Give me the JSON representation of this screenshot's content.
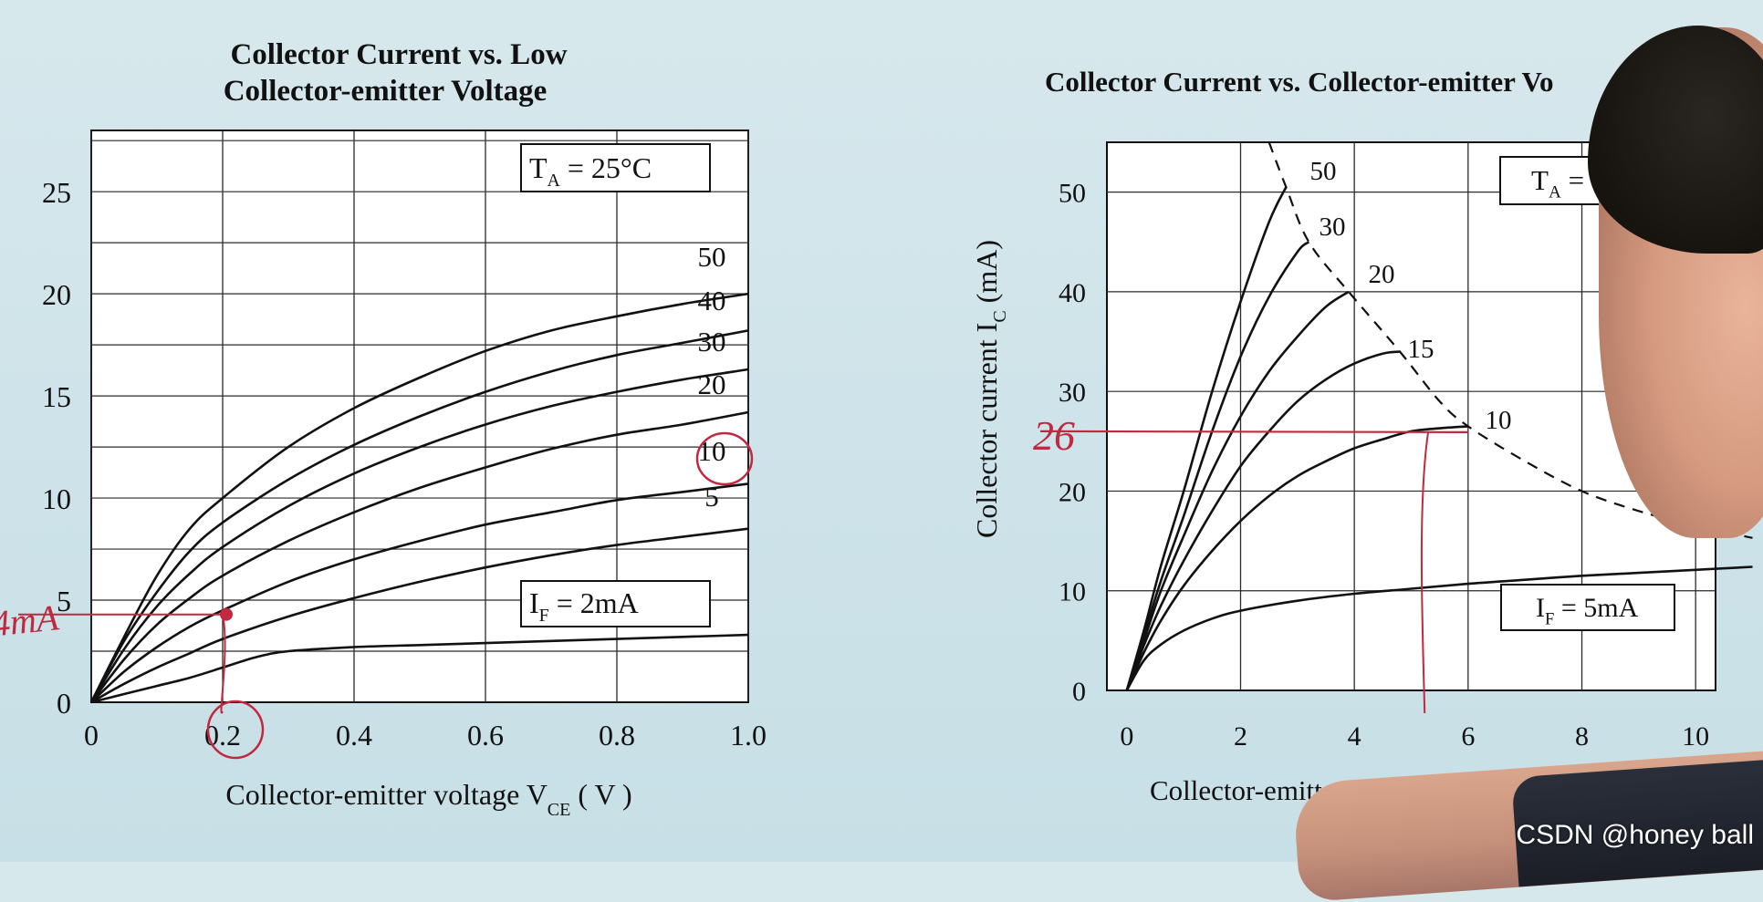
{
  "chart_data": [
    {
      "type": "line",
      "title": [
        "Collector Current vs. Low",
        "Collector-emitter Voltage"
      ],
      "xlabel": "Collector-emitter voltage V",
      "xlabel_sub": "CE",
      "xlabel_unit": " ( V )",
      "ylabel": "",
      "xlim": [
        0,
        1.0
      ],
      "ylim": [
        0,
        28
      ],
      "x_ticks": [
        "0",
        "0.2",
        "0.4",
        "0.6",
        "0.8",
        "1.0"
      ],
      "y_ticks": [
        "0",
        "5",
        "10",
        "15",
        "20",
        "25"
      ],
      "grid": true,
      "annotations": [
        {
          "main": "T",
          "sub": "A",
          "rest": "  = 25°C"
        },
        {
          "main": "I",
          "sub": "F",
          "rest": "  = 2mA"
        }
      ],
      "series": [
        {
          "name": "50",
          "points": [
            [
              0,
              0
            ],
            [
              0.05,
              3.2
            ],
            [
              0.1,
              6.2
            ],
            [
              0.15,
              8.5
            ],
            [
              0.2,
              10
            ],
            [
              0.3,
              12.5
            ],
            [
              0.4,
              14.4
            ],
            [
              0.5,
              15.9
            ],
            [
              0.6,
              17.2
            ],
            [
              0.7,
              18.2
            ],
            [
              0.8,
              18.9
            ],
            [
              0.9,
              19.5
            ],
            [
              1.0,
              20
            ]
          ]
        },
        {
          "name": "40",
          "points": [
            [
              0,
              0
            ],
            [
              0.05,
              3
            ],
            [
              0.1,
              5.4
            ],
            [
              0.15,
              7.4
            ],
            [
              0.2,
              8.8
            ],
            [
              0.3,
              10.9
            ],
            [
              0.4,
              12.6
            ],
            [
              0.5,
              14
            ],
            [
              0.6,
              15.2
            ],
            [
              0.7,
              16.2
            ],
            [
              0.8,
              17
            ],
            [
              0.9,
              17.6
            ],
            [
              1.0,
              18.2
            ]
          ]
        },
        {
          "name": "30",
          "points": [
            [
              0,
              0
            ],
            [
              0.05,
              2.6
            ],
            [
              0.1,
              4.7
            ],
            [
              0.15,
              6.3
            ],
            [
              0.2,
              7.6
            ],
            [
              0.3,
              9.6
            ],
            [
              0.4,
              11.2
            ],
            [
              0.5,
              12.5
            ],
            [
              0.6,
              13.6
            ],
            [
              0.7,
              14.5
            ],
            [
              0.8,
              15.2
            ],
            [
              0.9,
              15.8
            ],
            [
              1.0,
              16.3
            ]
          ]
        },
        {
          "name": "20",
          "points": [
            [
              0,
              0
            ],
            [
              0.05,
              2.1
            ],
            [
              0.1,
              3.8
            ],
            [
              0.15,
              5.1
            ],
            [
              0.2,
              6.2
            ],
            [
              0.3,
              7.9
            ],
            [
              0.4,
              9.3
            ],
            [
              0.5,
              10.5
            ],
            [
              0.6,
              11.5
            ],
            [
              0.7,
              12.4
            ],
            [
              0.8,
              13.1
            ],
            [
              0.9,
              13.6
            ],
            [
              1.0,
              14.2
            ]
          ]
        },
        {
          "name": "10",
          "points": [
            [
              0,
              0
            ],
            [
              0.05,
              1.5
            ],
            [
              0.1,
              2.7
            ],
            [
              0.15,
              3.7
            ],
            [
              0.2,
              4.5
            ],
            [
              0.3,
              5.9
            ],
            [
              0.4,
              7
            ],
            [
              0.5,
              7.9
            ],
            [
              0.6,
              8.7
            ],
            [
              0.7,
              9.3
            ],
            [
              0.8,
              9.9
            ],
            [
              0.9,
              10.3
            ],
            [
              1.0,
              10.7
            ]
          ]
        },
        {
          "name": "5",
          "points": [
            [
              0,
              0
            ],
            [
              0.05,
              0.9
            ],
            [
              0.1,
              1.7
            ],
            [
              0.15,
              2.4
            ],
            [
              0.2,
              3.1
            ],
            [
              0.3,
              4.2
            ],
            [
              0.4,
              5.1
            ],
            [
              0.5,
              5.9
            ],
            [
              0.6,
              6.6
            ],
            [
              0.7,
              7.2
            ],
            [
              0.8,
              7.7
            ],
            [
              0.9,
              8.1
            ],
            [
              1.0,
              8.5
            ]
          ]
        },
        {
          "name": "",
          "points": [
            [
              0,
              0
            ],
            [
              0.05,
              0.4
            ],
            [
              0.1,
              0.8
            ],
            [
              0.15,
              1.2
            ],
            [
              0.2,
              1.7
            ],
            [
              0.25,
              2.2
            ],
            [
              0.3,
              2.5
            ],
            [
              0.4,
              2.7
            ],
            [
              0.5,
              2.8
            ],
            [
              0.6,
              2.9
            ],
            [
              0.7,
              3.0
            ],
            [
              0.8,
              3.1
            ],
            [
              0.9,
              3.2
            ],
            [
              1.0,
              3.3
            ]
          ]
        }
      ],
      "handwriting": [
        "4mA"
      ],
      "highlight_point": {
        "x": 0.2,
        "y": 4.3
      }
    },
    {
      "type": "line",
      "title": [
        "Collector Current vs. Collector-emitter Vo"
      ],
      "xlabel": "Collector-emitter",
      "ylabel": "Collector current I",
      "ylabel_sub": "C",
      "ylabel_unit": " (mA)",
      "xlim": [
        0,
        10
      ],
      "ylim": [
        0,
        55
      ],
      "x_ticks": [
        "0",
        "2",
        "4",
        "6",
        "8",
        "10"
      ],
      "y_ticks": [
        "0",
        "10",
        "20",
        "30",
        "40",
        "50"
      ],
      "grid": true,
      "annotations": [
        {
          "main": "T",
          "sub": "A",
          "rest": " ="
        },
        {
          "main": "I",
          "sub": "F",
          "rest": " = 5mA"
        }
      ],
      "series": [
        {
          "name": "50",
          "points": [
            [
              0,
              0
            ],
            [
              0.3,
              6
            ],
            [
              0.6,
              12.5
            ],
            [
              1,
              20
            ],
            [
              1.5,
              30
            ],
            [
              2,
              39
            ],
            [
              2.5,
              47
            ],
            [
              2.8,
              50.5
            ]
          ]
        },
        {
          "name": "30",
          "points": [
            [
              0,
              0
            ],
            [
              0.3,
              5.5
            ],
            [
              0.6,
              11
            ],
            [
              1,
              17.5
            ],
            [
              1.5,
              26
            ],
            [
              2,
              33.5
            ],
            [
              2.5,
              39.5
            ],
            [
              3,
              44
            ],
            [
              3.2,
              45
            ]
          ]
        },
        {
          "name": "20",
          "points": [
            [
              0,
              0
            ],
            [
              0.3,
              5
            ],
            [
              0.6,
              10
            ],
            [
              1,
              15.5
            ],
            [
              1.5,
              22
            ],
            [
              2,
              27.5
            ],
            [
              2.5,
              32
            ],
            [
              3,
              35.5
            ],
            [
              3.5,
              38.5
            ],
            [
              3.9,
              40
            ]
          ]
        },
        {
          "name": "15",
          "points": [
            [
              0,
              0
            ],
            [
              0.3,
              4.5
            ],
            [
              0.6,
              8.5
            ],
            [
              1,
              13
            ],
            [
              1.5,
              18
            ],
            [
              2,
              22.5
            ],
            [
              2.5,
              26
            ],
            [
              3,
              29
            ],
            [
              3.5,
              31.2
            ],
            [
              4,
              32.8
            ],
            [
              4.5,
              33.8
            ],
            [
              4.8,
              34
            ]
          ]
        },
        {
          "name": "10",
          "points": [
            [
              0,
              0
            ],
            [
              0.3,
              3.8
            ],
            [
              0.6,
              7
            ],
            [
              1,
              10.5
            ],
            [
              1.5,
              14
            ],
            [
              2,
              17
            ],
            [
              2.5,
              19.5
            ],
            [
              3,
              21.5
            ],
            [
              3.5,
              23
            ],
            [
              4,
              24.3
            ],
            [
              4.5,
              25.2
            ],
            [
              5,
              26
            ],
            [
              5.5,
              26.3
            ],
            [
              6,
              26.5
            ]
          ]
        },
        {
          "name": "",
          "points": [
            [
              0,
              0
            ],
            [
              0.3,
              3
            ],
            [
              0.6,
              4.6
            ],
            [
              1,
              6
            ],
            [
              1.5,
              7.2
            ],
            [
              2,
              8
            ],
            [
              3,
              9
            ],
            [
              4,
              9.7
            ],
            [
              5,
              10.2
            ],
            [
              6,
              10.7
            ],
            [
              7,
              11.1
            ],
            [
              8,
              11.5
            ],
            [
              9,
              11.8
            ],
            [
              10,
              12.1
            ],
            [
              11,
              12.4
            ]
          ]
        }
      ],
      "boundary": [
        [
          2.5,
          55
        ],
        [
          2.8,
          50.5
        ],
        [
          3.2,
          45
        ],
        [
          3.9,
          40
        ],
        [
          4.8,
          34
        ],
        [
          5.5,
          29
        ],
        [
          6,
          26.5
        ],
        [
          7,
          23
        ],
        [
          8,
          20
        ],
        [
          9,
          18
        ],
        [
          10,
          16.5
        ],
        [
          11,
          15.3
        ]
      ],
      "handwriting": [
        "26"
      ],
      "marker_y": 26,
      "marker_x": 5.3
    }
  ],
  "watermark": "CSDN @honey ball",
  "colors": {
    "ink": "#111111",
    "pen": "#c0293f",
    "grid": "#2a2a2a",
    "paper": "#ffffff"
  }
}
